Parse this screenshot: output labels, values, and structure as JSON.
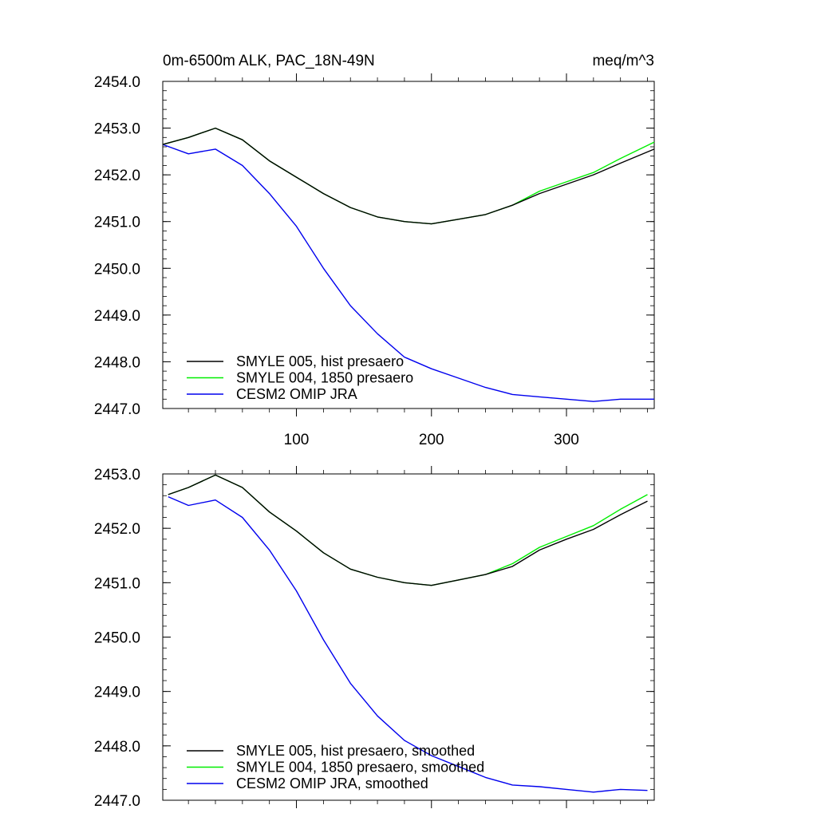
{
  "chart_data": [
    {
      "type": "line",
      "title_left": "0m-6500m ALK, PAC_18N-49N",
      "title_right": "meq/m^3",
      "xlim": [
        1,
        365
      ],
      "ylim": [
        2447.0,
        2454.0
      ],
      "x_ticks": [
        100,
        200,
        300
      ],
      "x_tick_labels": [
        "100",
        "200",
        "300"
      ],
      "y_ticks": [
        2447.0,
        2448.0,
        2449.0,
        2450.0,
        2451.0,
        2452.0,
        2453.0,
        2454.0
      ],
      "y_tick_labels": [
        "2447.0",
        "2448.0",
        "2449.0",
        "2450.0",
        "2451.0",
        "2452.0",
        "2453.0",
        "2454.0"
      ],
      "legend_position": "bottom-left",
      "series": [
        {
          "name": "SMYLE 005, hist presaero",
          "color": "#000000",
          "x": [
            1,
            20,
            40,
            60,
            80,
            100,
            120,
            140,
            160,
            180,
            200,
            220,
            240,
            260,
            280,
            300,
            320,
            340,
            365
          ],
          "y": [
            2452.65,
            2452.8,
            2453.0,
            2452.75,
            2452.3,
            2451.95,
            2451.6,
            2451.3,
            2451.1,
            2451.0,
            2450.95,
            2451.05,
            2451.15,
            2451.35,
            2451.6,
            2451.8,
            2452.0,
            2452.25,
            2452.55
          ]
        },
        {
          "name": "SMYLE 004, 1850 presaero",
          "color": "#00ee00",
          "x": [
            1,
            20,
            40,
            60,
            80,
            100,
            120,
            140,
            160,
            180,
            200,
            220,
            240,
            260,
            280,
            300,
            320,
            340,
            365
          ],
          "y": [
            2452.65,
            2452.8,
            2453.0,
            2452.75,
            2452.3,
            2451.95,
            2451.6,
            2451.3,
            2451.1,
            2451.0,
            2450.95,
            2451.05,
            2451.15,
            2451.35,
            2451.65,
            2451.85,
            2452.05,
            2452.35,
            2452.7
          ]
        },
        {
          "name": "CESM2 OMIP JRA",
          "color": "#0000ee",
          "x": [
            1,
            20,
            40,
            60,
            80,
            100,
            120,
            140,
            160,
            180,
            200,
            220,
            240,
            260,
            280,
            300,
            320,
            340,
            365
          ],
          "y": [
            2452.65,
            2452.45,
            2452.55,
            2452.2,
            2451.6,
            2450.9,
            2450.0,
            2449.2,
            2448.6,
            2448.1,
            2447.85,
            2447.65,
            2447.45,
            2447.3,
            2447.25,
            2447.2,
            2447.15,
            2447.2,
            2447.2
          ]
        }
      ]
    },
    {
      "type": "line",
      "xlim": [
        1,
        365
      ],
      "ylim": [
        2447.0,
        2453.0
      ],
      "x_ticks": [
        100,
        200,
        300
      ],
      "y_ticks": [
        2447.0,
        2448.0,
        2449.0,
        2450.0,
        2451.0,
        2452.0,
        2453.0
      ],
      "y_tick_labels": [
        "2447.0",
        "2448.0",
        "2449.0",
        "2450.0",
        "2451.0",
        "2452.0",
        "2453.0"
      ],
      "legend_position": "bottom-left",
      "series": [
        {
          "name": "SMYLE 005, hist presaero, smoothed",
          "color": "#000000",
          "x": [
            5,
            20,
            40,
            60,
            80,
            100,
            120,
            140,
            160,
            180,
            200,
            220,
            240,
            260,
            280,
            300,
            320,
            340,
            360
          ],
          "y": [
            2452.62,
            2452.75,
            2452.98,
            2452.75,
            2452.3,
            2451.95,
            2451.55,
            2451.25,
            2451.1,
            2451.0,
            2450.95,
            2451.05,
            2451.15,
            2451.3,
            2451.6,
            2451.8,
            2451.98,
            2452.25,
            2452.5
          ]
        },
        {
          "name": "SMYLE 004, 1850 presaero, smoothed",
          "color": "#00ee00",
          "x": [
            5,
            20,
            40,
            60,
            80,
            100,
            120,
            140,
            160,
            180,
            200,
            220,
            240,
            260,
            280,
            300,
            320,
            340,
            360
          ],
          "y": [
            2452.62,
            2452.75,
            2452.98,
            2452.75,
            2452.3,
            2451.95,
            2451.55,
            2451.25,
            2451.1,
            2451.0,
            2450.95,
            2451.05,
            2451.15,
            2451.35,
            2451.65,
            2451.85,
            2452.05,
            2452.35,
            2452.62
          ]
        },
        {
          "name": "CESM2 OMIP JRA, smoothed",
          "color": "#0000ee",
          "x": [
            5,
            20,
            40,
            60,
            80,
            100,
            120,
            140,
            160,
            180,
            200,
            220,
            240,
            260,
            280,
            300,
            320,
            340,
            360
          ],
          "y": [
            2452.58,
            2452.42,
            2452.52,
            2452.2,
            2451.6,
            2450.85,
            2449.95,
            2449.15,
            2448.55,
            2448.1,
            2447.82,
            2447.62,
            2447.42,
            2447.28,
            2447.25,
            2447.2,
            2447.15,
            2447.2,
            2447.18
          ]
        }
      ]
    }
  ]
}
